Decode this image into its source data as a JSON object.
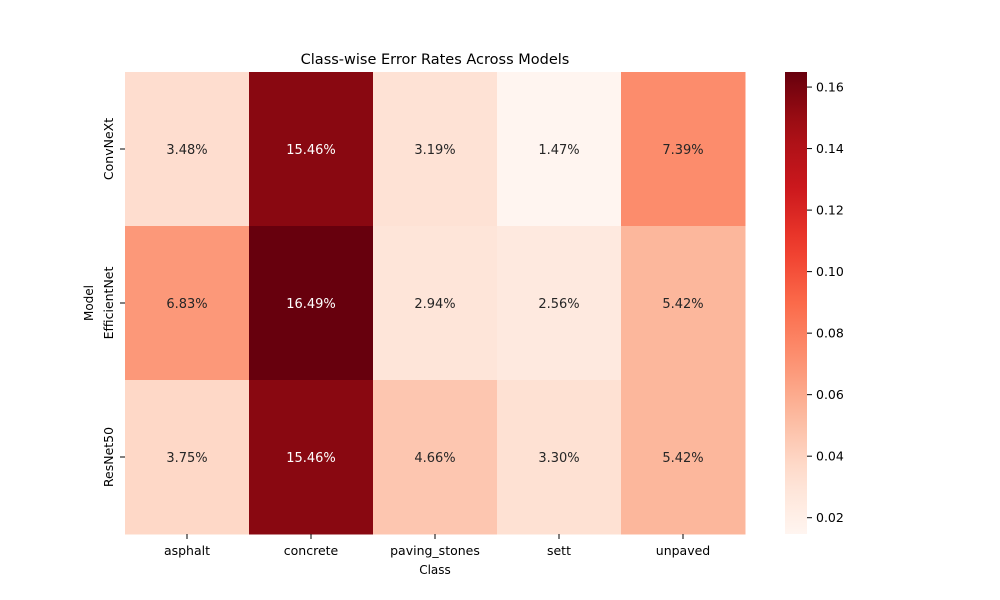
{
  "chart_data": {
    "type": "heatmap",
    "title": "Class-wise Error Rates Across Models",
    "xlabel": "Class",
    "ylabel": "Model",
    "x_categories": [
      "asphalt",
      "concrete",
      "paving_stones",
      "sett",
      "unpaved"
    ],
    "y_categories": [
      "ConvNeXt",
      "EfficientNet",
      "ResNet50"
    ],
    "values": [
      [
        0.0348,
        0.1546,
        0.0319,
        0.0147,
        0.0739
      ],
      [
        0.0683,
        0.1649,
        0.0294,
        0.0256,
        0.0542
      ],
      [
        0.0375,
        0.1546,
        0.0466,
        0.033,
        0.0542
      ]
    ],
    "cell_labels": [
      [
        "3.48%",
        "15.46%",
        "3.19%",
        "1.47%",
        "7.39%"
      ],
      [
        "6.83%",
        "16.49%",
        "2.94%",
        "2.56%",
        "5.42%"
      ],
      [
        "3.75%",
        "15.46%",
        "4.66%",
        "3.30%",
        "5.42%"
      ]
    ],
    "colormap": "Reds",
    "colorbar": {
      "range": [
        0.0147,
        0.1649
      ],
      "ticks": [
        0.02,
        0.04,
        0.06,
        0.08,
        0.1,
        0.12,
        0.14,
        0.16
      ],
      "tick_labels": [
        "0.02",
        "0.04",
        "0.06",
        "0.08",
        "0.10",
        "0.12",
        "0.14",
        "0.16"
      ]
    },
    "grid": false,
    "legend": "colorbar-right"
  }
}
